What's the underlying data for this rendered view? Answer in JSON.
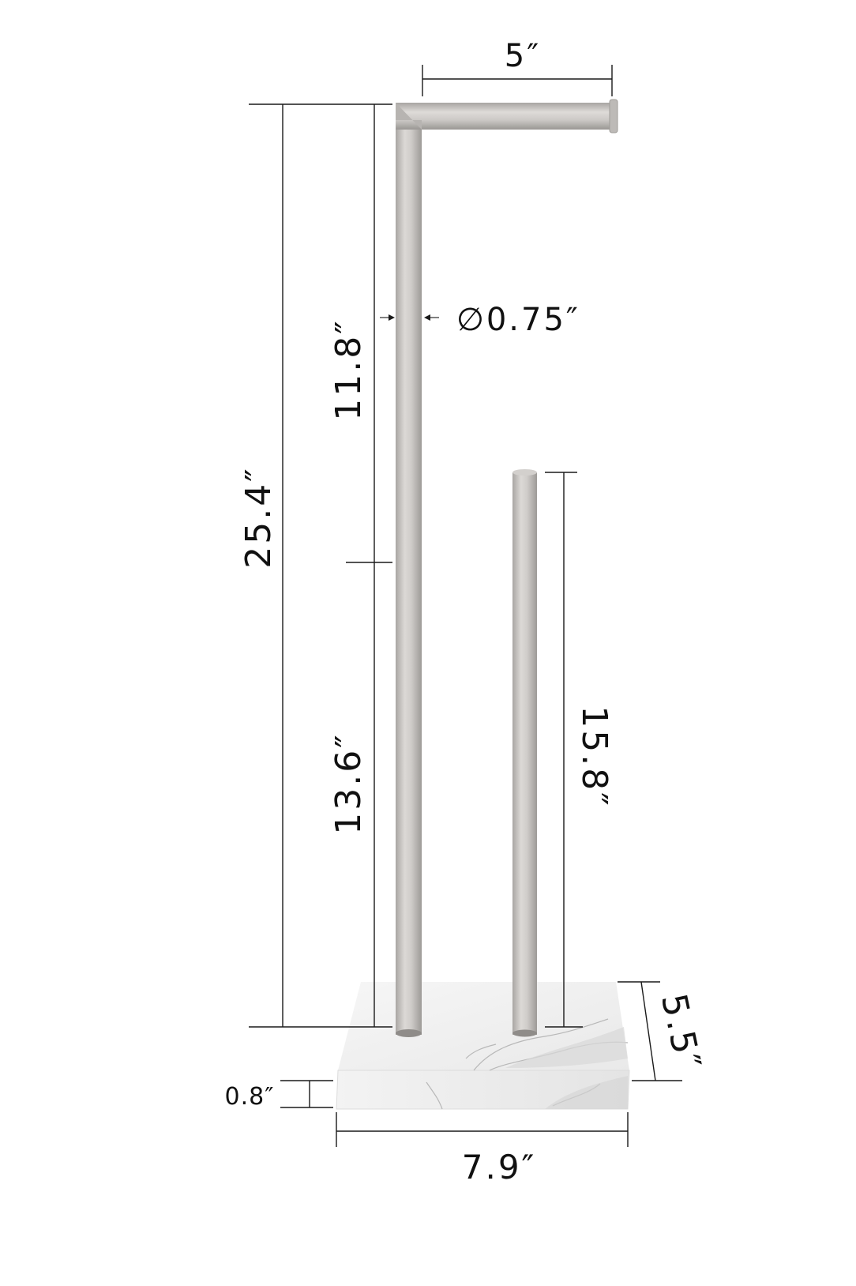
{
  "product": "freestanding toilet paper holder",
  "dimensions": {
    "top_arm_length": "5″",
    "total_height": "25.4″",
    "upper_section": "11.8″",
    "lower_section": "13.6″",
    "tube_diameter": "∅0.75″",
    "reserve_rod_height": "15.8″",
    "base_depth": "5.5″",
    "base_thickness": "0.8″",
    "base_width": "7.9″"
  },
  "colors": {
    "metal": "#c9c6c3",
    "marble": "#f1f1f1",
    "lines": "#1a1a1a",
    "text": "#111111"
  }
}
